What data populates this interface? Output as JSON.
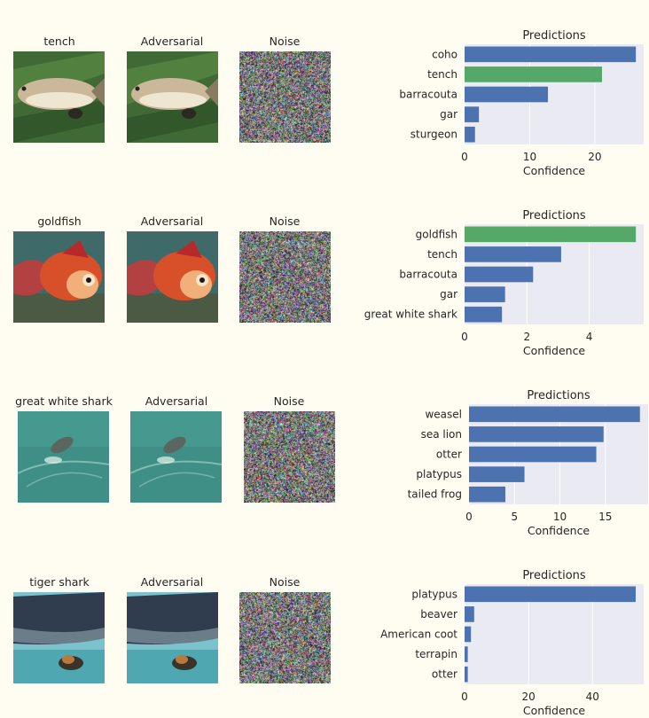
{
  "rows": [
    {
      "image_titles": [
        "tench",
        "Adversarial",
        "Noise"
      ],
      "scene": "fish"
    },
    {
      "image_titles": [
        "goldfish",
        "Adversarial",
        "Noise"
      ],
      "scene": "goldfish"
    },
    {
      "image_titles": [
        "great white shark",
        "Adversarial",
        "Noise"
      ],
      "scene": "sea"
    },
    {
      "image_titles": [
        "tiger shark",
        "Adversarial",
        "Noise"
      ],
      "scene": "shark"
    }
  ],
  "colors": {
    "bar_default": "#4c72b0",
    "bar_correct": "#55a868",
    "plot_bg": "#eaeaf2",
    "grid": "#ffffff",
    "page_bg": "#fffcf1"
  },
  "chart_data": [
    {
      "type": "bar",
      "orientation": "horizontal",
      "title": "Predictions",
      "xlabel": "Confidence",
      "categories": [
        "coho",
        "tench",
        "barracouta",
        "gar",
        "sturgeon"
      ],
      "values": [
        26.3,
        21.1,
        12.8,
        2.2,
        1.6
      ],
      "highlight": "tench",
      "xlim": [
        0,
        27.5
      ],
      "xticks": [
        0,
        10,
        20
      ],
      "grid": true
    },
    {
      "type": "bar",
      "orientation": "horizontal",
      "title": "Predictions",
      "xlabel": "Confidence",
      "categories": [
        "goldfish",
        "tench",
        "barracouta",
        "gar",
        "great white shark"
      ],
      "values": [
        5.5,
        3.1,
        2.2,
        1.3,
        1.2
      ],
      "highlight": "goldfish",
      "xlim": [
        0,
        5.75
      ],
      "xticks": [
        0,
        2,
        4
      ],
      "grid": true
    },
    {
      "type": "bar",
      "orientation": "horizontal",
      "title": "Predictions",
      "xlabel": "Confidence",
      "categories": [
        "weasel",
        "sea lion",
        "otter",
        "platypus",
        "tailed frog"
      ],
      "values": [
        18.8,
        14.8,
        14.0,
        6.1,
        4.0
      ],
      "highlight": null,
      "xlim": [
        0,
        19.7
      ],
      "xticks": [
        0,
        5,
        10,
        15
      ],
      "grid": true
    },
    {
      "type": "bar",
      "orientation": "horizontal",
      "title": "Predictions",
      "xlabel": "Confidence",
      "categories": [
        "platypus",
        "beaver",
        "American coot",
        "terrapin",
        "otter"
      ],
      "values": [
        53.5,
        3.0,
        2.0,
        1.0,
        1.0
      ],
      "highlight": null,
      "xlim": [
        0,
        56
      ],
      "xticks": [
        0,
        20,
        40
      ],
      "grid": true
    }
  ]
}
